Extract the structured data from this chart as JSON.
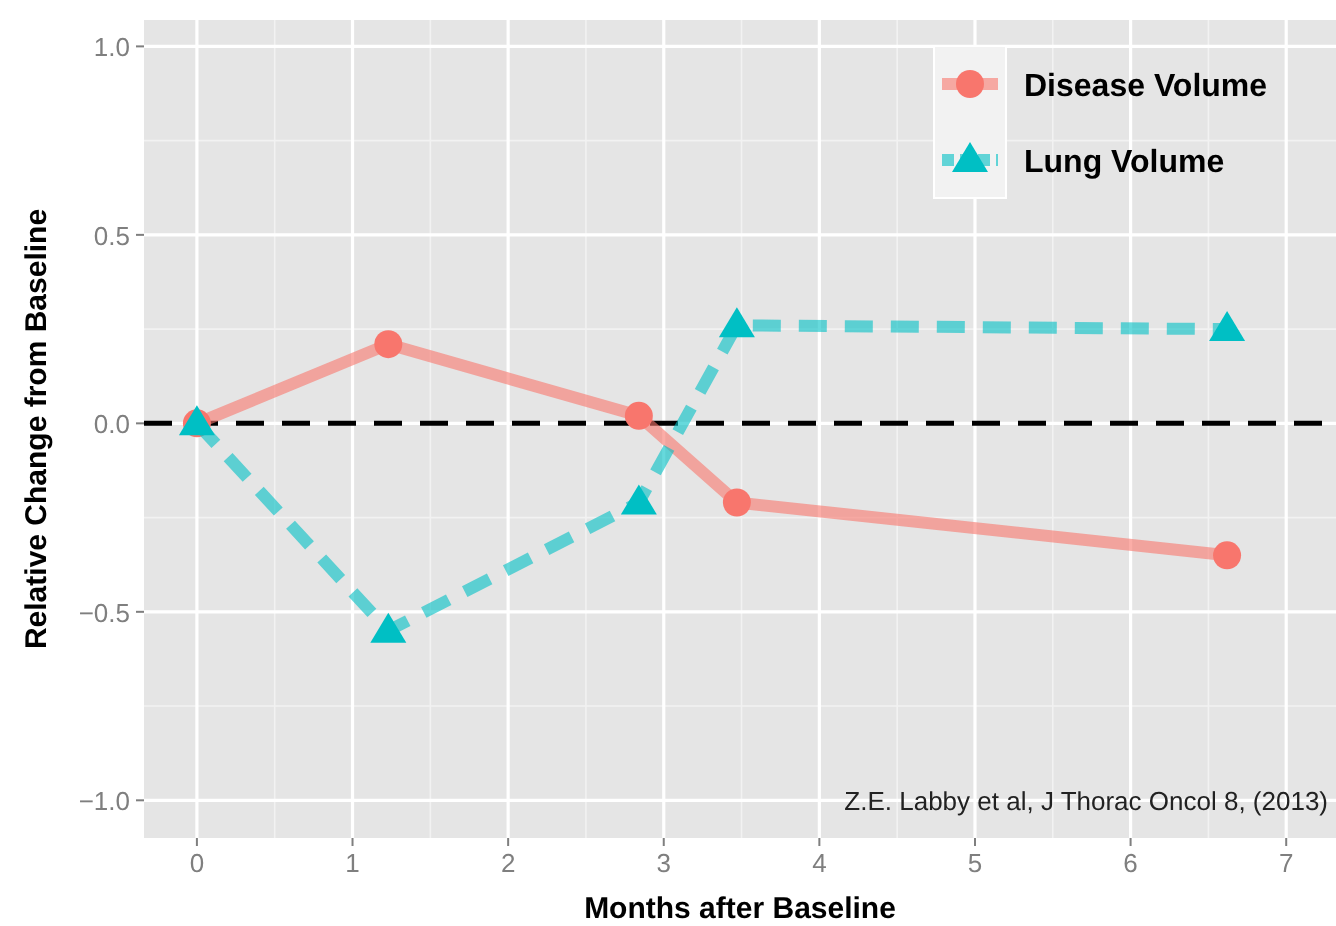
{
  "chart_data": {
    "type": "line",
    "xlabel": "Months after Baseline",
    "ylabel": "Relative Change from Baseline",
    "xlim": [
      -0.34,
      7.32
    ],
    "xticks": [
      0,
      1,
      2,
      3,
      4,
      5,
      6,
      7
    ],
    "ylim": [
      -1.1,
      1.07
    ],
    "yticks": [
      {
        "value": -1,
        "label": "−1.0"
      },
      {
        "value": -0.5,
        "label": "−0.5"
      },
      {
        "value": 0,
        "label": "0.0"
      },
      {
        "value": 0.5,
        "label": "0.5"
      },
      {
        "value": 1,
        "label": "1.0"
      }
    ],
    "grid": true,
    "legend": "top right",
    "series": [
      {
        "name": "Disease Volume",
        "color": "#f8766d",
        "x": [
          0,
          1.23,
          2.84,
          3.47,
          6.62
        ],
        "values": [
          0,
          0.21,
          0.02,
          -0.21,
          -0.35
        ],
        "marker": "circle",
        "line_style": "solid"
      },
      {
        "name": "Lung Volume",
        "color": "#00bfc4",
        "x": [
          0,
          1.23,
          2.84,
          3.47,
          6.62
        ],
        "values": [
          0,
          -0.55,
          -0.21,
          0.26,
          0.25
        ],
        "marker": "triangle",
        "line_style": "dashed"
      }
    ],
    "ref_lines": [
      {
        "axis": "y",
        "value": 0,
        "color": "#000000",
        "line_style": "dashed"
      }
    ],
    "annotations": [
      "Z.E. Labby et al, J Thorac Oncol 8, (2013)"
    ]
  }
}
